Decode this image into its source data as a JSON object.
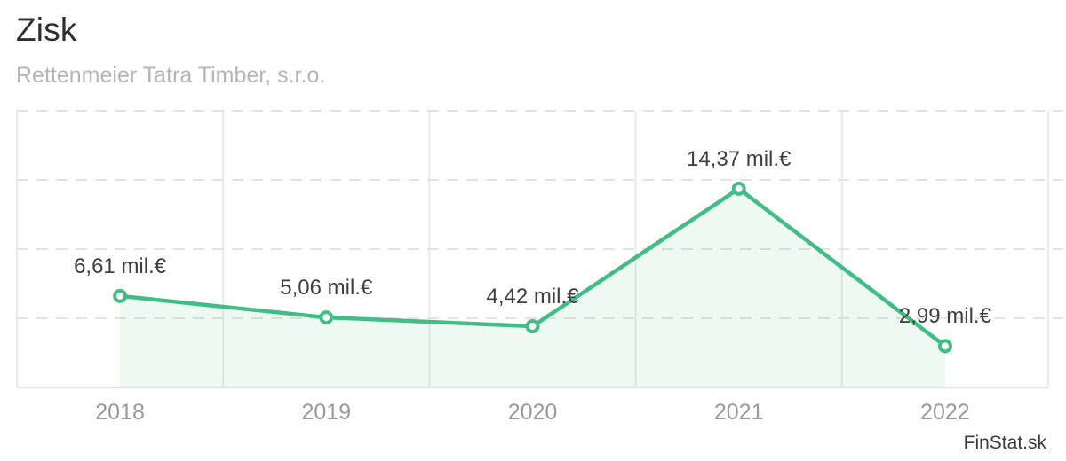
{
  "header": {
    "title": "Zisk",
    "subtitle": "Rettenmeier Tatra Timber, s.r.o."
  },
  "footer": {
    "watermark": "FinStat.sk"
  },
  "colors": {
    "line": "#42bd85",
    "marker_fill": "#ffffff",
    "area_fill": "rgba(66, 189, 133, 0.09)",
    "grid_vertical": "#e8ebeb",
    "grid_horizontal": "#e3e3e3",
    "axis_bottom": "#e1e3e4",
    "title_text": "#2f2f2f",
    "subtitle_text": "#b6b6b6",
    "value_label_text": "#3f3f3f",
    "tick_text": "#9a9a9a",
    "watermark_text": "#3c3c3c"
  },
  "chart_data": {
    "type": "area",
    "title": "Zisk",
    "subtitle": "Rettenmeier Tatra Timber, s.r.o.",
    "categories": [
      "2018",
      "2019",
      "2020",
      "2021",
      "2022"
    ],
    "values": [
      6.61,
      5.06,
      4.42,
      14.37,
      2.99
    ],
    "value_labels": [
      "6,61 mil.€",
      "5,06 mil.€",
      "4,42 mil.€",
      "14,37 mil.€",
      "2,99 mil.€"
    ],
    "unit": "mil.€",
    "xlabel": "",
    "ylabel": "",
    "ylim": [
      0,
      20
    ],
    "y_gridline_step": 5,
    "grid": "horizontal dashed, vertical solid band borders",
    "legend_position": "none",
    "markers": "open circles",
    "area_under_line": true
  }
}
